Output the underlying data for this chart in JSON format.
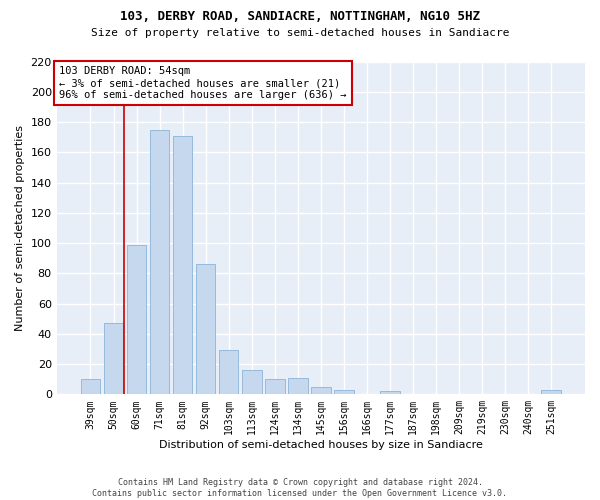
{
  "title1": "103, DERBY ROAD, SANDIACRE, NOTTINGHAM, NG10 5HZ",
  "title2": "Size of property relative to semi-detached houses in Sandiacre",
  "xlabel": "Distribution of semi-detached houses by size in Sandiacre",
  "ylabel": "Number of semi-detached properties",
  "categories": [
    "39sqm",
    "50sqm",
    "60sqm",
    "71sqm",
    "81sqm",
    "92sqm",
    "103sqm",
    "113sqm",
    "124sqm",
    "134sqm",
    "145sqm",
    "156sqm",
    "166sqm",
    "177sqm",
    "187sqm",
    "198sqm",
    "209sqm",
    "219sqm",
    "230sqm",
    "240sqm",
    "251sqm"
  ],
  "values": [
    10,
    47,
    99,
    175,
    171,
    86,
    29,
    16,
    10,
    11,
    5,
    3,
    0,
    2,
    0,
    0,
    0,
    0,
    0,
    0,
    3
  ],
  "bar_color": "#c5d8ee",
  "bar_edgecolor": "#8ab4d8",
  "vline_color": "#cc0000",
  "annotation_title": "103 DERBY ROAD: 54sqm",
  "annotation_line1": "← 3% of semi-detached houses are smaller (21)",
  "annotation_line2": "96% of semi-detached houses are larger (636) →",
  "annotation_box_color": "#ffffff",
  "annotation_box_edgecolor": "#cc0000",
  "ylim": [
    0,
    220
  ],
  "yticks": [
    0,
    20,
    40,
    60,
    80,
    100,
    120,
    140,
    160,
    180,
    200,
    220
  ],
  "footer": "Contains HM Land Registry data © Crown copyright and database right 2024.\nContains public sector information licensed under the Open Government Licence v3.0.",
  "bg_color": "#e8eef7",
  "grid_color": "#ffffff"
}
